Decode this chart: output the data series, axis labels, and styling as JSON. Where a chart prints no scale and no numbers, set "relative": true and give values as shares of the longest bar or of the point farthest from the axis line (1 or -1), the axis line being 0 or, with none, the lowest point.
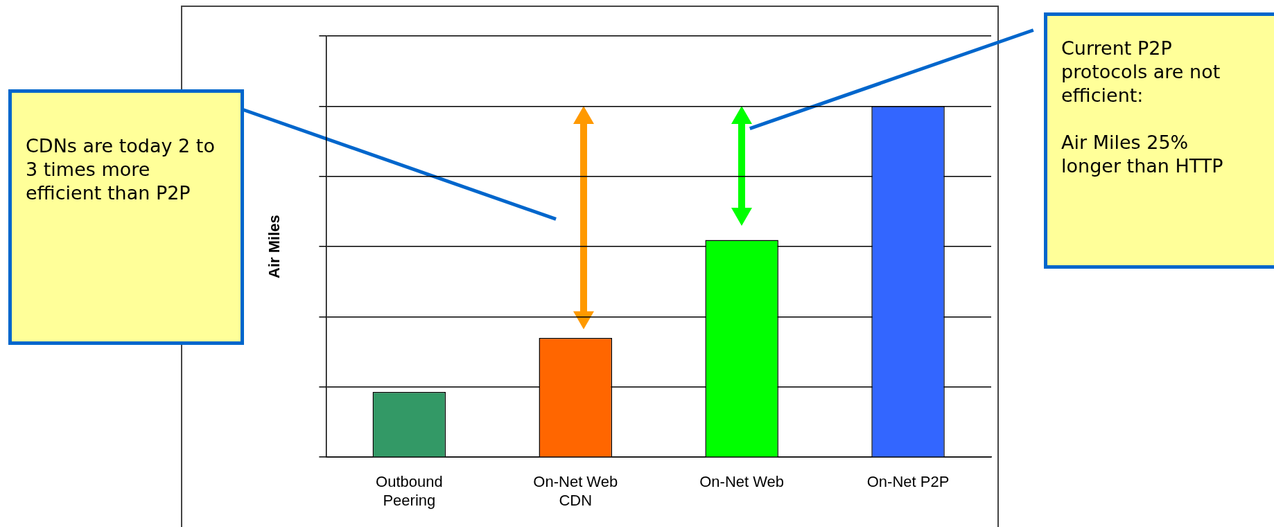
{
  "chart_data": {
    "type": "bar",
    "relative": true,
    "ylabel": "Air Miles",
    "categories": [
      "Outbound Peering",
      "On-Net Web CDN",
      "On-Net Web",
      "On-Net P2P"
    ],
    "values": [
      0.186,
      0.34,
      0.619,
      1
    ],
    "colors": [
      "#339966",
      "#ff6600",
      "#00ff00",
      "#3366ff"
    ],
    "grid": "y",
    "legend": false,
    "tick_labels": "x",
    "annotations": [
      "CDNs are today 2 to 3 times more efficient than P2P",
      "Current P2P protocols are not efficient:",
      "Air Miles 25% longer than HTTP"
    ]
  }
}
